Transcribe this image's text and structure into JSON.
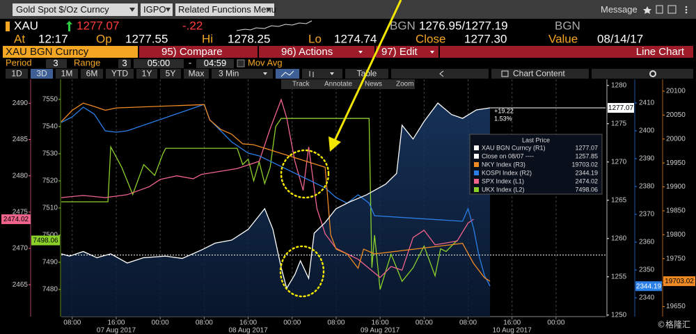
{
  "toolbar": {
    "security": "Gold Spot $/Oz Curncy",
    "function": "IGPO",
    "menu": "Related Functions Menu",
    "message": "Message"
  },
  "quote": {
    "ticker": "XAU",
    "last": "1277.07",
    "change": "-.22",
    "source": "BGN",
    "bid_ask": "1276.95/1277.19",
    "source2": "BGN"
  },
  "stats": [
    {
      "label": "At",
      "value": "12:17"
    },
    {
      "label": "Op",
      "value": "1277.55"
    },
    {
      "label": "Hi",
      "value": "1278.25"
    },
    {
      "label": "Lo",
      "value": "1274.74"
    },
    {
      "label": "Close",
      "value": "1277.30"
    },
    {
      "label": "Value",
      "value": "08/14/17"
    }
  ],
  "tabs": {
    "security": "XAU BGN Curncy",
    "compare": "95) Compare",
    "actions": "96) Actions",
    "edit": "97) Edit",
    "chart_type": "Line Chart"
  },
  "settings": {
    "period_label": "Period",
    "period": "3",
    "range_label": "Range",
    "range": "3",
    "start": "05:00",
    "dash": "-",
    "end": "04:59",
    "mov_avg": "Mov Avg"
  },
  "ranges": [
    "1D",
    "3D",
    "1M",
    "6M",
    "YTD",
    "1Y",
    "5Y",
    "Max"
  ],
  "frequency": "3 Min",
  "table": "Table",
  "chart_content": "Chart Content",
  "chart_tools": [
    "Track",
    "Annotate",
    "News",
    "Zoom"
  ],
  "watermark": "©格隆汇",
  "chart_data": {
    "type": "line",
    "xlim": [
      6,
      105
    ],
    "xticks": [
      {
        "value": 8,
        "label": "08:00"
      },
      {
        "value": 16,
        "label": "16:00"
      },
      {
        "value": 24,
        "label": "00:00"
      },
      {
        "value": 32,
        "label": "08:00"
      },
      {
        "value": 40,
        "label": "16:00"
      },
      {
        "value": 48,
        "label": "00:00"
      },
      {
        "value": 56,
        "label": "08:00"
      },
      {
        "value": 64,
        "label": "16:00"
      },
      {
        "value": 72,
        "label": "00:00"
      },
      {
        "value": 80,
        "label": "08:00"
      },
      {
        "value": 88,
        "label": "16:00"
      },
      {
        "value": 96,
        "label": "00:00"
      }
    ],
    "xdates": [
      {
        "value": 16,
        "label": "07 Aug 2017"
      },
      {
        "value": 40,
        "label": "08 Aug 2017"
      },
      {
        "value": 64,
        "label": "09 Aug 2017"
      },
      {
        "value": 88,
        "label": "10 Aug 2017"
      }
    ],
    "grid": true,
    "axes": {
      "L1": {
        "lim": [
          2460.6,
          2493.3
        ],
        "ticks": [
          2465,
          2470,
          2475,
          2480,
          2485,
          2490
        ]
      },
      "L2": {
        "lim": [
          7470,
          7557.4
        ],
        "ticks": [
          7480,
          7490,
          7500,
          7510,
          7520,
          7530,
          7540,
          7550
        ]
      },
      "R1": {
        "lim": [
          1249.8,
          1280.8
        ],
        "ticks": [
          1250,
          1255,
          1260,
          1265,
          1270,
          1275,
          1280
        ]
      },
      "R2": {
        "lim": [
          2333.25,
          2418.5
        ],
        "ticks": [
          2340,
          2350,
          2360,
          2370,
          2380,
          2390,
          2400,
          2410
        ]
      },
      "R3": {
        "lim": [
          19629,
          20124.7
        ],
        "ticks": [
          19650,
          19700,
          19750,
          19800,
          19850,
          19900,
          19950,
          20000,
          20050,
          20100
        ]
      }
    },
    "legend_title": "Last Price",
    "close_line": {
      "name": "Close on 08/07 ----",
      "value": 1257.85,
      "color": "#ffffff"
    },
    "change_label": "+19.22",
    "change_pct_label": "1.53%",
    "series": [
      {
        "name": "XAU BGN Curncy (R1)",
        "axis": "R1",
        "color": "#ffffff",
        "area": true,
        "x": [
          6,
          7.5,
          10,
          12.5,
          15,
          18,
          21,
          25,
          28,
          31.5,
          34,
          37,
          40,
          43,
          44.5,
          46,
          47,
          48.5,
          49.5,
          51,
          52,
          54,
          56,
          58.5,
          61.5,
          65,
          67,
          68,
          70,
          72,
          74.5,
          77,
          79,
          81.5,
          84
        ],
        "values": [
          1258.0,
          1257.7,
          1258.3,
          1257.5,
          1258.0,
          1256.8,
          1257.5,
          1257.7,
          1257.4,
          1258.5,
          1259.4,
          1259.8,
          1261.2,
          1263.9,
          1261.2,
          1256.2,
          1253.5,
          1255.3,
          1257.1,
          1254.8,
          1260.7,
          1262.1,
          1263.9,
          1264.8,
          1265.7,
          1267.1,
          1268.5,
          1274.8,
          1273.0,
          1275.3,
          1277.7,
          1276.2,
          1275.7,
          1276.8,
          1277.07
        ]
      },
      {
        "name": "NKY Index (R3)",
        "axis": "R3",
        "color": "#f08a24",
        "x": [
          6,
          8,
          10,
          12,
          14,
          16,
          32,
          33,
          35,
          37,
          39,
          41,
          54,
          55,
          56,
          58,
          60,
          61,
          63,
          79,
          81,
          83,
          84
        ],
        "values": [
          20036,
          20060,
          20075,
          20068,
          20060,
          20065,
          20072,
          20040,
          20020,
          20010,
          19990,
          19988,
          19941,
          19800,
          19770,
          19760,
          19730,
          19770,
          19760,
          19782,
          19740,
          19710,
          19703.02
        ]
      },
      {
        "name": "KOSPI Index (R2)",
        "axis": "R2",
        "color": "#2a7fe8",
        "x": [
          6,
          8,
          10,
          12,
          14,
          16,
          18,
          32,
          33,
          35,
          37,
          40,
          42,
          54,
          56,
          58,
          60,
          62,
          63,
          79,
          80,
          81,
          82,
          83,
          84
        ],
        "values": [
          2403,
          2405,
          2408.5,
          2406,
          2400,
          2399.5,
          2400,
          2409.5,
          2404,
          2400,
          2396,
          2392,
          2391,
          2379.5,
          2376,
          2374,
          2377,
          2374,
          2369.5,
          2367.5,
          2372,
          2365,
          2355,
          2348,
          2344.19
        ]
      },
      {
        "name": "SPX Index (L1)",
        "axis": "L1",
        "color": "#f0648c",
        "x": [
          6,
          10,
          14,
          18,
          22,
          24,
          27,
          30,
          31.5,
          38,
          42,
          44,
          46,
          47,
          48.5,
          50,
          51,
          52.5,
          54,
          56,
          60,
          64,
          66,
          68,
          70,
          72,
          74,
          78,
          80,
          81
        ],
        "values": [
          2477.0,
          2477.3,
          2477.0,
          2477.4,
          2478.5,
          2479.5,
          2480.0,
          2479.6,
          2480.2,
          2481.0,
          2482.0,
          2486.5,
          2490.5,
          2488.0,
          2482.0,
          2478.0,
          2484.0,
          2475.5,
          2472.0,
          2470.0,
          2468.5,
          2466.0,
          2467.5,
          2467.0,
          2471.5,
          2472.5,
          2470.5,
          2471.0,
          2473.5,
          2474.02
        ]
      },
      {
        "name": "UKX Index (L2)",
        "axis": "L2",
        "color": "#8cd02a",
        "x": [
          6,
          14.5,
          15,
          17,
          19,
          21,
          23,
          24.5,
          25,
          38,
          39,
          40,
          41,
          42,
          43,
          44,
          45,
          46,
          50,
          62,
          62.5,
          63,
          64,
          66,
          68,
          70,
          72,
          74,
          75,
          76,
          78
        ],
        "values": [
          7512.3,
          7512.3,
          7532.5,
          7525,
          7515,
          7526,
          7522,
          7530,
          7532,
          7532,
          7526,
          7528,
          7520,
          7527,
          7519,
          7525,
          7540,
          7543,
          7543,
          7543,
          7488,
          7500,
          7480,
          7493,
          7483,
          7488,
          7496,
          7485,
          7495,
          7494,
          7498.06
        ]
      }
    ]
  }
}
